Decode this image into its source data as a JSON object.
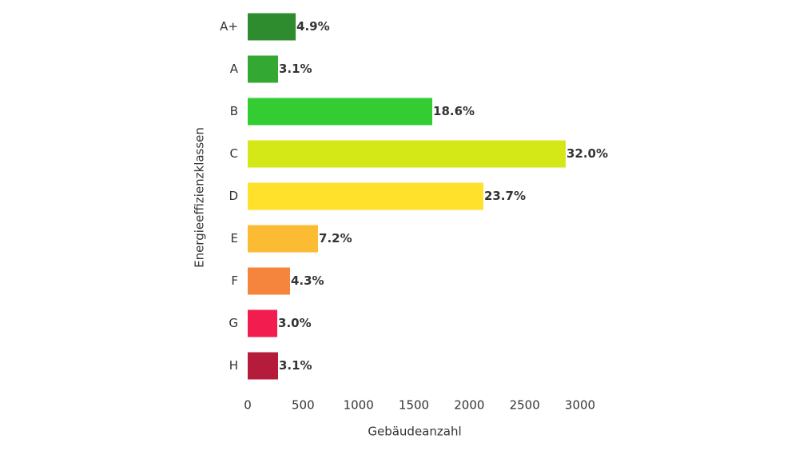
{
  "chart_data": {
    "type": "bar",
    "orientation": "horizontal",
    "x_label": "Gebäudeanzahl",
    "y_label": "Energieeffizienzklassen",
    "categories": [
      "A+",
      "A",
      "B",
      "C",
      "D",
      "E",
      "F",
      "G",
      "H"
    ],
    "values": [
      433,
      274,
      1666,
      2870,
      2127,
      635,
      382,
      267,
      274
    ],
    "percent_labels": [
      "4.9%",
      "3.1%",
      "18.6%",
      "32.0%",
      "23.7%",
      "7.2%",
      "4.3%",
      "3.0%",
      "3.1%"
    ],
    "colors": [
      "#2e8b2e",
      "#33a833",
      "#33cc33",
      "#d4e817",
      "#ffe02a",
      "#fbbc34",
      "#f5843c",
      "#f21d4e",
      "#b51c3c"
    ],
    "xlim": [
      0,
      3000
    ],
    "xticks": [
      0,
      500,
      1000,
      1500,
      2000,
      2500,
      3000
    ],
    "grid": false
  }
}
